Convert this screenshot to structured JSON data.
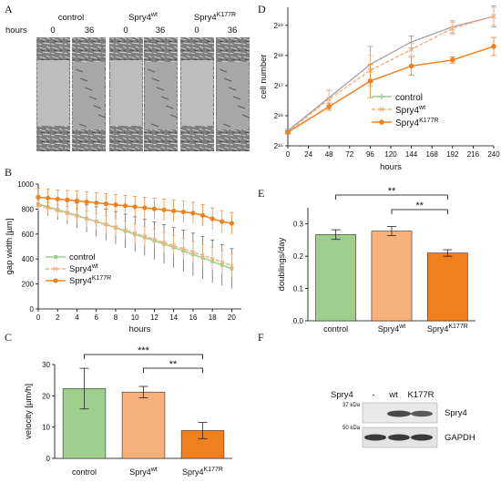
{
  "panel_labels": {
    "a": "A",
    "b": "B",
    "c": "C",
    "d": "D",
    "e": "E",
    "f": "F"
  },
  "panel_a": {
    "row_label": "hours",
    "groups": [
      {
        "name": "control",
        "times": [
          "0",
          "36"
        ]
      },
      {
        "name": "Spry4",
        "sup": "wt",
        "times": [
          "0",
          "36"
        ]
      },
      {
        "name": "Spry4",
        "sup": "K177R",
        "times": [
          "0",
          "36"
        ]
      }
    ]
  },
  "series_names": [
    {
      "name": "control",
      "sup": "",
      "color": "#9fcf8d"
    },
    {
      "name": "Spry4",
      "sup": "wt",
      "color": "#f6b07a"
    },
    {
      "name": "Spry4",
      "sup": "K177R",
      "color": "#f0801e"
    }
  ],
  "significance": {
    "triple": "***",
    "double": "**"
  },
  "chart_data": [
    {
      "panel": "B",
      "type": "line",
      "xlabel": "hours",
      "ylabel": "gap width [µm]",
      "xlim": [
        0,
        21
      ],
      "ylim": [
        0,
        1000
      ],
      "xticks": [
        "0",
        "2",
        "4",
        "6",
        "8",
        "10",
        "12",
        "14",
        "16",
        "18",
        "20"
      ],
      "yticks": [
        "0",
        "200",
        "400",
        "600",
        "800",
        "1000"
      ],
      "x": [
        0,
        1,
        2,
        3,
        4,
        5,
        6,
        7,
        8,
        9,
        10,
        11,
        12,
        13,
        14,
        15,
        16,
        17,
        18,
        19,
        20
      ],
      "series": [
        {
          "name": "control",
          "values": [
            840,
            818,
            795,
            772,
            748,
            724,
            700,
            676,
            650,
            624,
            598,
            572,
            546,
            520,
            492,
            465,
            437,
            409,
            381,
            352,
            323
          ],
          "err": [
            60,
            70,
            80,
            90,
            100,
            110,
            118,
            125,
            130,
            135,
            140,
            145,
            150,
            155,
            160,
            165,
            170,
            170,
            170,
            165,
            160
          ]
        },
        {
          "name": "Spry4wt",
          "values": [
            830,
            810,
            788,
            766,
            744,
            722,
            700,
            677,
            654,
            630,
            606,
            582,
            558,
            532,
            507,
            481,
            455,
            428,
            401,
            374,
            347
          ],
          "err": [
            40,
            45,
            50,
            55,
            60,
            62,
            65,
            68,
            70,
            72,
            74,
            76,
            78,
            80,
            82,
            84,
            86,
            88,
            90,
            92,
            95
          ]
        },
        {
          "name": "Spry4K177R",
          "values": [
            895,
            888,
            880,
            873,
            866,
            858,
            850,
            842,
            834,
            826,
            818,
            810,
            802,
            794,
            785,
            777,
            768,
            750,
            722,
            700,
            685
          ],
          "err": [
            70,
            72,
            74,
            76,
            78,
            80,
            80,
            82,
            82,
            84,
            84,
            85,
            85,
            86,
            86,
            86,
            86,
            87,
            87,
            88,
            88
          ]
        }
      ],
      "legend_position": "bottom-left"
    },
    {
      "panel": "C",
      "type": "bar",
      "ylabel": "velocity [µm/h]",
      "ylim": [
        0,
        30
      ],
      "yticks": [
        "0",
        "10",
        "20",
        "30"
      ],
      "categories": [
        "control",
        "Spry4wt",
        "Spry4K177R"
      ],
      "values": [
        22.3,
        21.2,
        8.9
      ],
      "err": [
        6.5,
        1.8,
        2.6
      ]
    },
    {
      "panel": "D",
      "type": "line",
      "xlabel": "hours",
      "ylabel": "cell number",
      "xlim": [
        0,
        240
      ],
      "ylim_log2": [
        15,
        19.6
      ],
      "y_scale": "log2",
      "xticks": [
        "0",
        "24",
        "48",
        "72",
        "96",
        "120",
        "144",
        "168",
        "192",
        "216",
        "240"
      ],
      "yticks": [
        "2¹⁵",
        "2¹⁶",
        "2¹⁷",
        "2¹⁸",
        "2¹⁹"
      ],
      "x": [
        0,
        48,
        96,
        144,
        192,
        240
      ],
      "series": [
        {
          "name": "control",
          "log2_values": [
            15.5,
            16.6,
            17.7,
            18.45,
            18.95,
            19.3
          ],
          "err": [
            0.05,
            0.25,
            0.6,
            0.2,
            0.2,
            0.35
          ]
        },
        {
          "name": "Spry4wt",
          "log2_values": [
            15.45,
            16.55,
            17.5,
            18.2,
            18.9,
            19.3
          ],
          "err": [
            0.05,
            0.3,
            0.5,
            0.2,
            0.2,
            0.3
          ]
        },
        {
          "name": "Spry4K177R",
          "log2_values": [
            15.45,
            16.3,
            17.15,
            17.65,
            17.85,
            18.3
          ],
          "err": [
            0.05,
            0.12,
            0.55,
            0.3,
            0.1,
            0.3
          ]
        }
      ],
      "legend_position": "bottom-right"
    },
    {
      "panel": "E",
      "type": "bar",
      "ylabel": "doublings/day",
      "ylim": [
        0,
        0.35
      ],
      "yticks": [
        "0.0",
        "0.1",
        "0.2",
        "0.3"
      ],
      "categories": [
        "control",
        "Spry4wt",
        "Spry4K177R"
      ],
      "values": [
        0.267,
        0.278,
        0.21
      ],
      "err": [
        0.015,
        0.014,
        0.01
      ]
    }
  ],
  "panel_f": {
    "row_header": "Spry4",
    "lanes": [
      "-",
      "wt",
      "K177R"
    ],
    "markers": [
      "37 kDa",
      "50 kDa"
    ],
    "bands": [
      "Spry4",
      "GAPDH"
    ]
  }
}
